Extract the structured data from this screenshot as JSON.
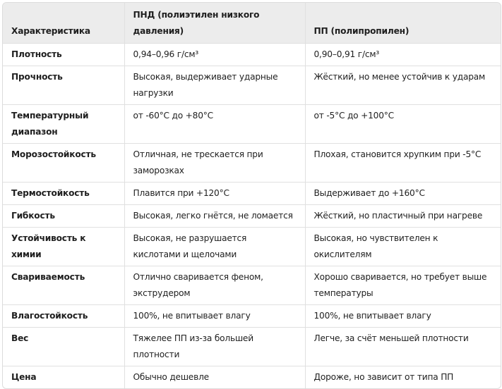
{
  "table": {
    "headers": [
      "Характеристика",
      "ПНД (полиэтилен низкого давления)",
      "ПП (полипропилен)"
    ],
    "rows": [
      [
        "Плотность",
        "0,94–0,96 г/см³",
        "0,90–0,91 г/см³"
      ],
      [
        "Прочность",
        "Высокая, выдерживает ударные нагрузки",
        "Жёсткий, но менее устойчив к ударам"
      ],
      [
        "Температурный диапазон",
        "от -60°C до +80°C",
        "от -5°C до +100°C"
      ],
      [
        "Морозостойкость",
        "Отличная, не трескается при заморозках",
        "Плохая, становится хрупким при -5°C"
      ],
      [
        "Термостойкость",
        "Плавится при +120°C",
        "Выдерживает до +160°C"
      ],
      [
        "Гибкость",
        "Высокая, легко гнётся, не ломается",
        "Жёсткий, но пластичный при нагреве"
      ],
      [
        "Устойчивость к химии",
        "Высокая, не разрушается кислотами и щелочами",
        "Высокая, но чувствителен к окислителям"
      ],
      [
        "Свариваемость",
        "Отлично сваривается феном, экструдером",
        "Хорошо сваривается, но требует выше температуры"
      ],
      [
        "Влагостойкость",
        "100%, не впитывает влагу",
        "100%, не впитывает влагу"
      ],
      [
        "Вес",
        "Тяжелее ПП из-за большей плотности",
        "Легче, за счёт меньшей плотности"
      ],
      [
        "Цена",
        "Обычно дешевле",
        "Дороже, но зависит от типа ПП"
      ]
    ]
  }
}
